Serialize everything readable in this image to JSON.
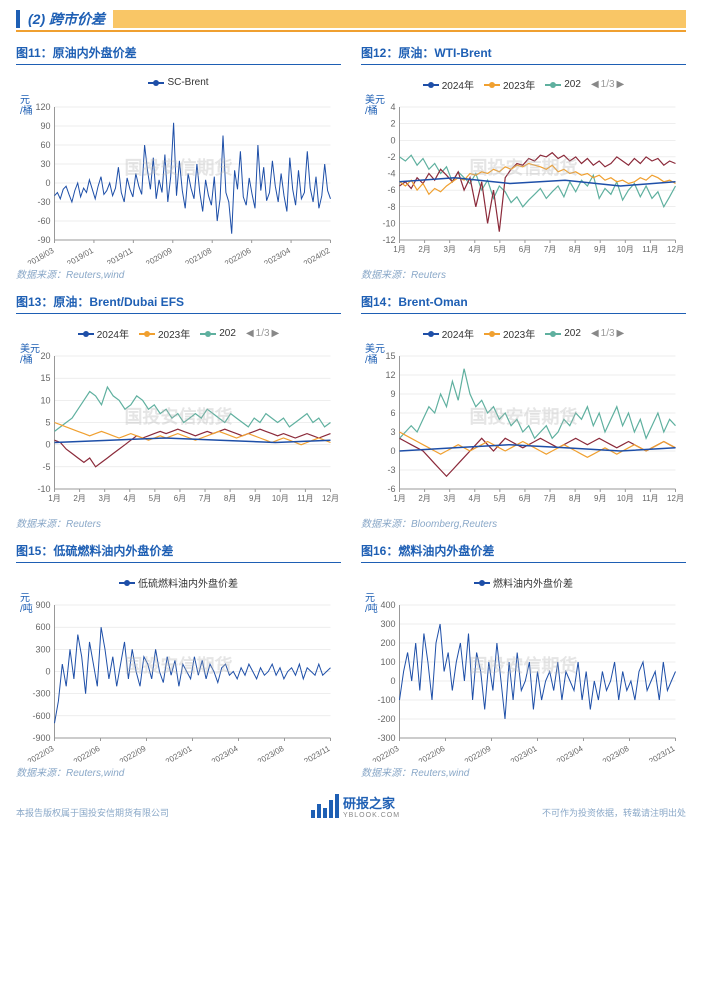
{
  "section": {
    "number": "(2)",
    "title": "跨市价差"
  },
  "watermark": "国投安信期货",
  "pager": {
    "text": "1/3"
  },
  "charts": [
    {
      "id": "c11",
      "title": "图11：原油内外盘价差",
      "source": "数据来源：Reuters,wind",
      "y_label": "元/桶",
      "type": "line",
      "legend": [
        {
          "label": "SC-Brent",
          "color": "#1e4fa8"
        }
      ],
      "ylim": [
        -90,
        120
      ],
      "ytick_step": 30,
      "xticks": [
        "2018/03",
        "2019/01",
        "2019/11",
        "2020/09",
        "2021/08",
        "2022/06",
        "2023/04",
        "2024/02"
      ],
      "series": [
        {
          "color": "#1e4fa8",
          "width": 1.0,
          "data": [
            -20,
            -15,
            -25,
            -10,
            -5,
            -18,
            -30,
            -12,
            0,
            -22,
            -8,
            -15,
            5,
            -10,
            -25,
            -5,
            10,
            -18,
            -12,
            0,
            -20,
            -8,
            25,
            -15,
            -30,
            8,
            -10,
            -22,
            15,
            -5,
            -18,
            60,
            20,
            -10,
            40,
            -25,
            5,
            -15,
            45,
            -30,
            10,
            95,
            -20,
            35,
            -12,
            -40,
            15,
            -8,
            -25,
            30,
            -15,
            -45,
            5,
            -20,
            -35,
            10,
            -60,
            -25,
            75,
            -15,
            -30,
            -80,
            20,
            -10,
            50,
            -22,
            -35,
            8,
            -18,
            -40,
            60,
            -12,
            25,
            -28,
            -15,
            35,
            -5,
            -30,
            15,
            -20,
            -45,
            40,
            -10,
            -35,
            20,
            -25,
            -15,
            50,
            -8,
            -30,
            10,
            -40,
            -20,
            30,
            -12,
            -25
          ]
        }
      ]
    },
    {
      "id": "c12",
      "title": "图12：原油：WTI-Brent",
      "source": "数据来源：Reuters",
      "y_label": "美元/桶",
      "type": "line",
      "has_pager": true,
      "legend": [
        {
          "label": "2024年",
          "color": "#1e4fa8"
        },
        {
          "label": "2023年",
          "color": "#f0a030"
        },
        {
          "label": "202",
          "color": "#5fb09f"
        }
      ],
      "ylim": [
        -12,
        4
      ],
      "ytick_step": 2,
      "xticks": [
        "1月",
        "2月",
        "3月",
        "4月",
        "5月",
        "6月",
        "7月",
        "8月",
        "9月",
        "10月",
        "11月",
        "12月"
      ],
      "series": [
        {
          "color": "#5fb09f",
          "width": 1.2,
          "data": [
            -2,
            -2.5,
            -1.8,
            -3,
            -2.2,
            -3.5,
            -2.8,
            -4,
            -3.2,
            -5,
            -3.8,
            -4.5,
            -5.2,
            -4,
            -6,
            -4.8,
            -7,
            -5.5,
            -6.2,
            -7.5,
            -6.8,
            -8,
            -7.2,
            -6.5,
            -5.8,
            -7,
            -6.2,
            -5.5,
            -6.8,
            -5,
            -6.2,
            -4.8,
            -5.5,
            -4.2,
            -7,
            -5.8,
            -6.5,
            -5,
            -7.2,
            -6,
            -5.2,
            -6.8,
            -5.5,
            -7,
            -6.2,
            -8,
            -6.8,
            -5.5
          ]
        },
        {
          "color": "#8b2a3a",
          "width": 1.2,
          "data": [
            -5.5,
            -5,
            -5.8,
            -4.5,
            -5.2,
            -4,
            -4.8,
            -3.5,
            -4.2,
            -5,
            -3.8,
            -6,
            -4.5,
            -8,
            -5,
            -10,
            -6,
            -11,
            -4.5,
            -3.5,
            -2.8,
            -3,
            -2.2,
            -2.5,
            -1.8,
            -2,
            -1.5,
            -2.2,
            -1.8,
            -2.5,
            -2,
            -2.8,
            -2.2,
            -3,
            -2.5,
            -3.2,
            -2.8,
            -2,
            -2.5,
            -3,
            -2.2,
            -2.8,
            -2,
            -2.5,
            -2.2,
            -3,
            -2.5,
            -2.8
          ]
        },
        {
          "color": "#f0a030",
          "width": 1.2,
          "data": [
            -5,
            -5.5,
            -4.8,
            -6,
            -5.2,
            -6.5,
            -5.8,
            -6.2,
            -5.5,
            -5,
            -4.5,
            -4.8,
            -4,
            -4.2,
            -3.8,
            -4,
            -3.5,
            -3.8,
            -3.2,
            -3.5,
            -3,
            -3.2,
            -2.8,
            -3,
            -3.2,
            -3.5,
            -3,
            -3.8,
            -3.5,
            -4,
            -3.8,
            -4.2,
            -4,
            -4.5,
            -4.2,
            -4.8,
            -4.5,
            -5,
            -4.8,
            -5.2,
            -5,
            -4.5,
            -4.8,
            -4.2,
            -4.5,
            -5,
            -4.8,
            -5.2
          ]
        },
        {
          "color": "#1e4fa8",
          "width": 1.5,
          "data": [
            -5,
            -4.5,
            -5.2,
            -4.8,
            -5.5,
            -5
          ]
        }
      ]
    },
    {
      "id": "c13",
      "title": "图13：原油：Brent/Dubai EFS",
      "source": "数据来源：Reuters",
      "y_label": "美元/桶",
      "type": "line",
      "has_pager": true,
      "legend": [
        {
          "label": "2024年",
          "color": "#1e4fa8"
        },
        {
          "label": "2023年",
          "color": "#f0a030"
        },
        {
          "label": "202",
          "color": "#5fb09f"
        }
      ],
      "ylim": [
        -10,
        20
      ],
      "ytick_step": 5,
      "xticks": [
        "1月",
        "2月",
        "3月",
        "4月",
        "5月",
        "6月",
        "7月",
        "8月",
        "9月",
        "10月",
        "11月",
        "12月"
      ],
      "series": [
        {
          "color": "#5fb09f",
          "width": 1.2,
          "data": [
            3,
            4,
            5,
            6,
            8,
            10,
            12,
            11,
            9,
            13,
            11,
            10,
            8,
            9,
            11,
            10,
            8,
            9,
            7,
            8,
            6,
            7,
            5,
            6,
            7,
            6,
            8,
            7,
            6,
            5,
            7,
            6,
            5,
            4,
            6,
            5,
            7,
            6,
            5,
            6,
            4,
            5,
            6,
            7,
            5,
            6,
            4,
            5
          ]
        },
        {
          "color": "#8b2a3a",
          "width": 1.2,
          "data": [
            1,
            0.5,
            -1,
            -2,
            -3,
            -4,
            -3,
            -5,
            -4,
            -3,
            -2,
            -1,
            0,
            1,
            2,
            1.5,
            2,
            2.5,
            3,
            2.5,
            3,
            3.5,
            3,
            2.5,
            2,
            2.5,
            3,
            2.5,
            3,
            3.5,
            3,
            2.5,
            2,
            2.5,
            3,
            3.5,
            3,
            2.5,
            2,
            2.5,
            2,
            1.5,
            2,
            2.5,
            2,
            1.5,
            2,
            2.5
          ]
        },
        {
          "color": "#f0a030",
          "width": 1.2,
          "data": [
            5,
            4.5,
            4,
            3.5,
            3,
            2.5,
            2,
            2.5,
            3,
            2.5,
            2,
            1.5,
            2,
            2.5,
            2,
            1.5,
            1,
            1.5,
            2,
            1.5,
            2,
            2.5,
            2,
            1.5,
            1,
            1.5,
            2,
            2.5,
            3,
            2.5,
            2,
            1.5,
            2,
            2.5,
            2,
            1.5,
            1,
            0.5,
            1,
            1.5,
            1,
            0.5,
            0,
            0.5,
            1,
            1.5,
            1,
            0.5
          ]
        },
        {
          "color": "#1e4fa8",
          "width": 1.5,
          "data": [
            0.5,
            1,
            1.5,
            1,
            0.5,
            1
          ]
        }
      ]
    },
    {
      "id": "c14",
      "title": "图14：Brent-Oman",
      "source": "数据来源：Bloomberg,Reuters",
      "y_label": "美元/桶",
      "type": "line",
      "has_pager": true,
      "legend": [
        {
          "label": "2024年",
          "color": "#1e4fa8"
        },
        {
          "label": "2023年",
          "color": "#f0a030"
        },
        {
          "label": "202",
          "color": "#5fb09f"
        }
      ],
      "ylim": [
        -6,
        15
      ],
      "ytick_step": 3,
      "xticks": [
        "1月",
        "2月",
        "3月",
        "4月",
        "5月",
        "6月",
        "7月",
        "8月",
        "9月",
        "10月",
        "11月",
        "12月"
      ],
      "series": [
        {
          "color": "#5fb09f",
          "width": 1.2,
          "data": [
            2,
            3,
            4,
            3,
            5,
            7,
            6,
            9,
            7,
            11,
            8,
            13,
            9,
            7,
            8,
            6,
            7,
            5,
            6,
            4,
            5,
            3,
            4,
            2,
            3,
            4,
            2,
            3,
            5,
            4,
            6,
            5,
            7,
            4,
            6,
            3,
            5,
            7,
            4,
            6,
            3,
            5,
            2,
            4,
            6,
            3,
            5,
            4
          ]
        },
        {
          "color": "#8b2a3a",
          "width": 1.2,
          "data": [
            2,
            1.5,
            1,
            0.5,
            0,
            -1,
            -2,
            -3,
            -4,
            -3,
            -2,
            -1,
            0,
            1,
            2,
            1,
            0,
            1,
            2,
            1.5,
            1,
            0.5,
            1,
            1.5,
            2,
            1.5,
            1,
            0.5,
            1,
            1.5,
            2,
            1.5,
            1,
            1.5,
            2,
            1.5,
            1,
            0.5,
            1,
            1.5,
            1,
            0.5,
            0,
            0.5,
            1,
            1.5,
            1,
            0.5
          ]
        },
        {
          "color": "#f0a030",
          "width": 1.2,
          "data": [
            3,
            2.5,
            2,
            1.5,
            1,
            0.5,
            0,
            -0.5,
            0,
            0.5,
            1,
            0.5,
            0,
            0.5,
            1,
            1.5,
            1,
            0.5,
            0,
            0.5,
            1,
            1.5,
            1,
            0.5,
            0,
            -0.5,
            0,
            0.5,
            1,
            0.5,
            0,
            -0.5,
            -1,
            -0.5,
            0,
            0.5,
            0,
            -0.5,
            0,
            0.5,
            1,
            0.5,
            0,
            0.5,
            1,
            1.5,
            1,
            0.5
          ]
        },
        {
          "color": "#1e4fa8",
          "width": 1.5,
          "data": [
            0,
            0.5,
            1,
            0.5,
            0,
            0.5
          ]
        }
      ]
    },
    {
      "id": "c15",
      "title": "图15：低硫燃料油内外盘价差",
      "source": "数据来源：Reuters,wind",
      "y_label": "元/吨",
      "type": "line",
      "legend": [
        {
          "label": "低硫燃料油内外盘价差",
          "color": "#1e4fa8"
        }
      ],
      "ylim": [
        -900,
        900
      ],
      "ytick_step": 300,
      "xticks": [
        "2022/03",
        "2022/06",
        "2022/09",
        "2023/01",
        "2023/04",
        "2023/08",
        "2023/11"
      ],
      "series": [
        {
          "color": "#1e4fa8",
          "width": 1.0,
          "data": [
            -700,
            -400,
            100,
            -200,
            300,
            -100,
            500,
            200,
            -300,
            400,
            100,
            -200,
            600,
            300,
            -100,
            200,
            -200,
            100,
            400,
            -100,
            300,
            0,
            -200,
            200,
            100,
            -100,
            300,
            0,
            -150,
            200,
            -50,
            150,
            -200,
            100,
            0,
            -100,
            200,
            -50,
            150,
            -100,
            100,
            0,
            -150,
            50,
            100,
            -50,
            0,
            -100,
            50,
            -50,
            100,
            0,
            -100,
            50,
            -50,
            0,
            100,
            -50,
            50,
            -100,
            0,
            50,
            -50,
            100,
            -100,
            50,
            0,
            -50,
            100,
            -50,
            0,
            50
          ]
        }
      ]
    },
    {
      "id": "c16",
      "title": "图16：燃料油内外盘价差",
      "source": "数据来源：Reuters,wind",
      "y_label": "元/吨",
      "type": "line",
      "legend": [
        {
          "label": "燃料油内外盘价差",
          "color": "#1e4fa8"
        }
      ],
      "ylim": [
        -300,
        400
      ],
      "ytick_step": 100,
      "xticks": [
        "2022/03",
        "2022/06",
        "2022/09",
        "2023/01",
        "2023/04",
        "2023/08",
        "2023/11"
      ],
      "series": [
        {
          "color": "#1e4fa8",
          "width": 1.0,
          "data": [
            -100,
            50,
            150,
            0,
            200,
            -50,
            250,
            100,
            -100,
            200,
            300,
            50,
            150,
            -50,
            100,
            200,
            0,
            250,
            -100,
            150,
            50,
            -150,
            100,
            -50,
            200,
            0,
            -200,
            100,
            -100,
            150,
            -50,
            0,
            100,
            -150,
            50,
            -100,
            0,
            50,
            -50,
            100,
            -100,
            50,
            0,
            -50,
            100,
            -100,
            50,
            -150,
            0,
            -100,
            50,
            -50,
            0,
            100,
            -100,
            50,
            -50,
            0,
            -100,
            50,
            100,
            -50,
            0,
            50,
            -100,
            100,
            -50,
            0,
            50
          ]
        }
      ]
    }
  ],
  "footer": {
    "left": "本报告版权属于国投安信期货有限公司",
    "logo_text": "研报之家",
    "logo_url": "YBLOOK.COM",
    "right": "不可作为投资依据，转载请注明出处"
  }
}
